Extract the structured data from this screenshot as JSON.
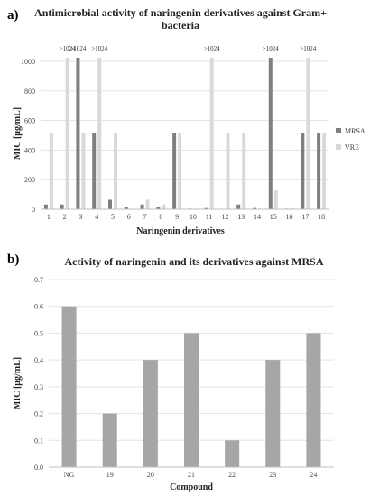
{
  "figure": {
    "panel_a_label": "a)",
    "panel_b_label": "b)"
  },
  "chart_data": [
    {
      "type": "bar",
      "title": "Antimicrobial  activity  of  naringenin  derivatives  against  Gram+ bacteria",
      "title_lines": [
        "Antimicrobial  activity  of  naringenin  derivatives  against  Gram+",
        "bacteria"
      ],
      "xlabel": "Naringenin derivatives",
      "ylabel": "MIC  [μg/mL]",
      "categories": [
        "1",
        "2",
        "3",
        "4",
        "5",
        "6",
        "7",
        "8",
        "9",
        "10",
        "11",
        "12",
        "13",
        "14",
        "15",
        "16",
        "17",
        "18"
      ],
      "ylim": [
        0,
        1024
      ],
      "yticks": [
        0,
        200,
        400,
        600,
        800,
        1000
      ],
      "grid": "horizontal",
      "legend_position": "right",
      "series": [
        {
          "name": "MRSA",
          "color": "#7f7f7f",
          "values": [
            32,
            32,
            1024,
            512,
            64,
            16,
            32,
            16,
            512,
            4,
            8,
            0,
            32,
            8,
            1024,
            4,
            512,
            512
          ]
        },
        {
          "name": "VRE",
          "color": "#d9d9d9",
          "values": [
            512,
            1024,
            512,
            1024,
            512,
            0,
            64,
            32,
            512,
            0,
            1024,
            512,
            512,
            4,
            128,
            8,
            1024,
            512
          ]
        }
      ],
      "annotations": [
        {
          "category": "2",
          "series": "VRE",
          "text": ">1024"
        },
        {
          "category": "3",
          "series": "MRSA",
          "text": ">1024"
        },
        {
          "category": "4",
          "series": "VRE",
          "text": ">1024"
        },
        {
          "category": "11",
          "series": "VRE",
          "text": ">1024"
        },
        {
          "category": "15",
          "series": "MRSA",
          "text": ">1024"
        },
        {
          "category": "17",
          "series": "VRE",
          "text": ">1024"
        }
      ]
    },
    {
      "type": "bar",
      "title": "Activity  of  naringenin  and  its  derivatives  against  MRSA",
      "xlabel": "Compound",
      "ylabel": "MIC [μg/mL]",
      "categories": [
        "NG",
        "19",
        "20",
        "21",
        "22",
        "23",
        "24"
      ],
      "ylim": [
        0,
        0.7
      ],
      "yticks": [
        0,
        0.1,
        0.2,
        0.3,
        0.4,
        0.5,
        0.6,
        0.7
      ],
      "grid": "horizontal",
      "series": [
        {
          "color": "#a6a6a6",
          "values": [
            0.6,
            0.2,
            0.4,
            0.5,
            0.1,
            0.4,
            0.5
          ]
        }
      ]
    }
  ]
}
